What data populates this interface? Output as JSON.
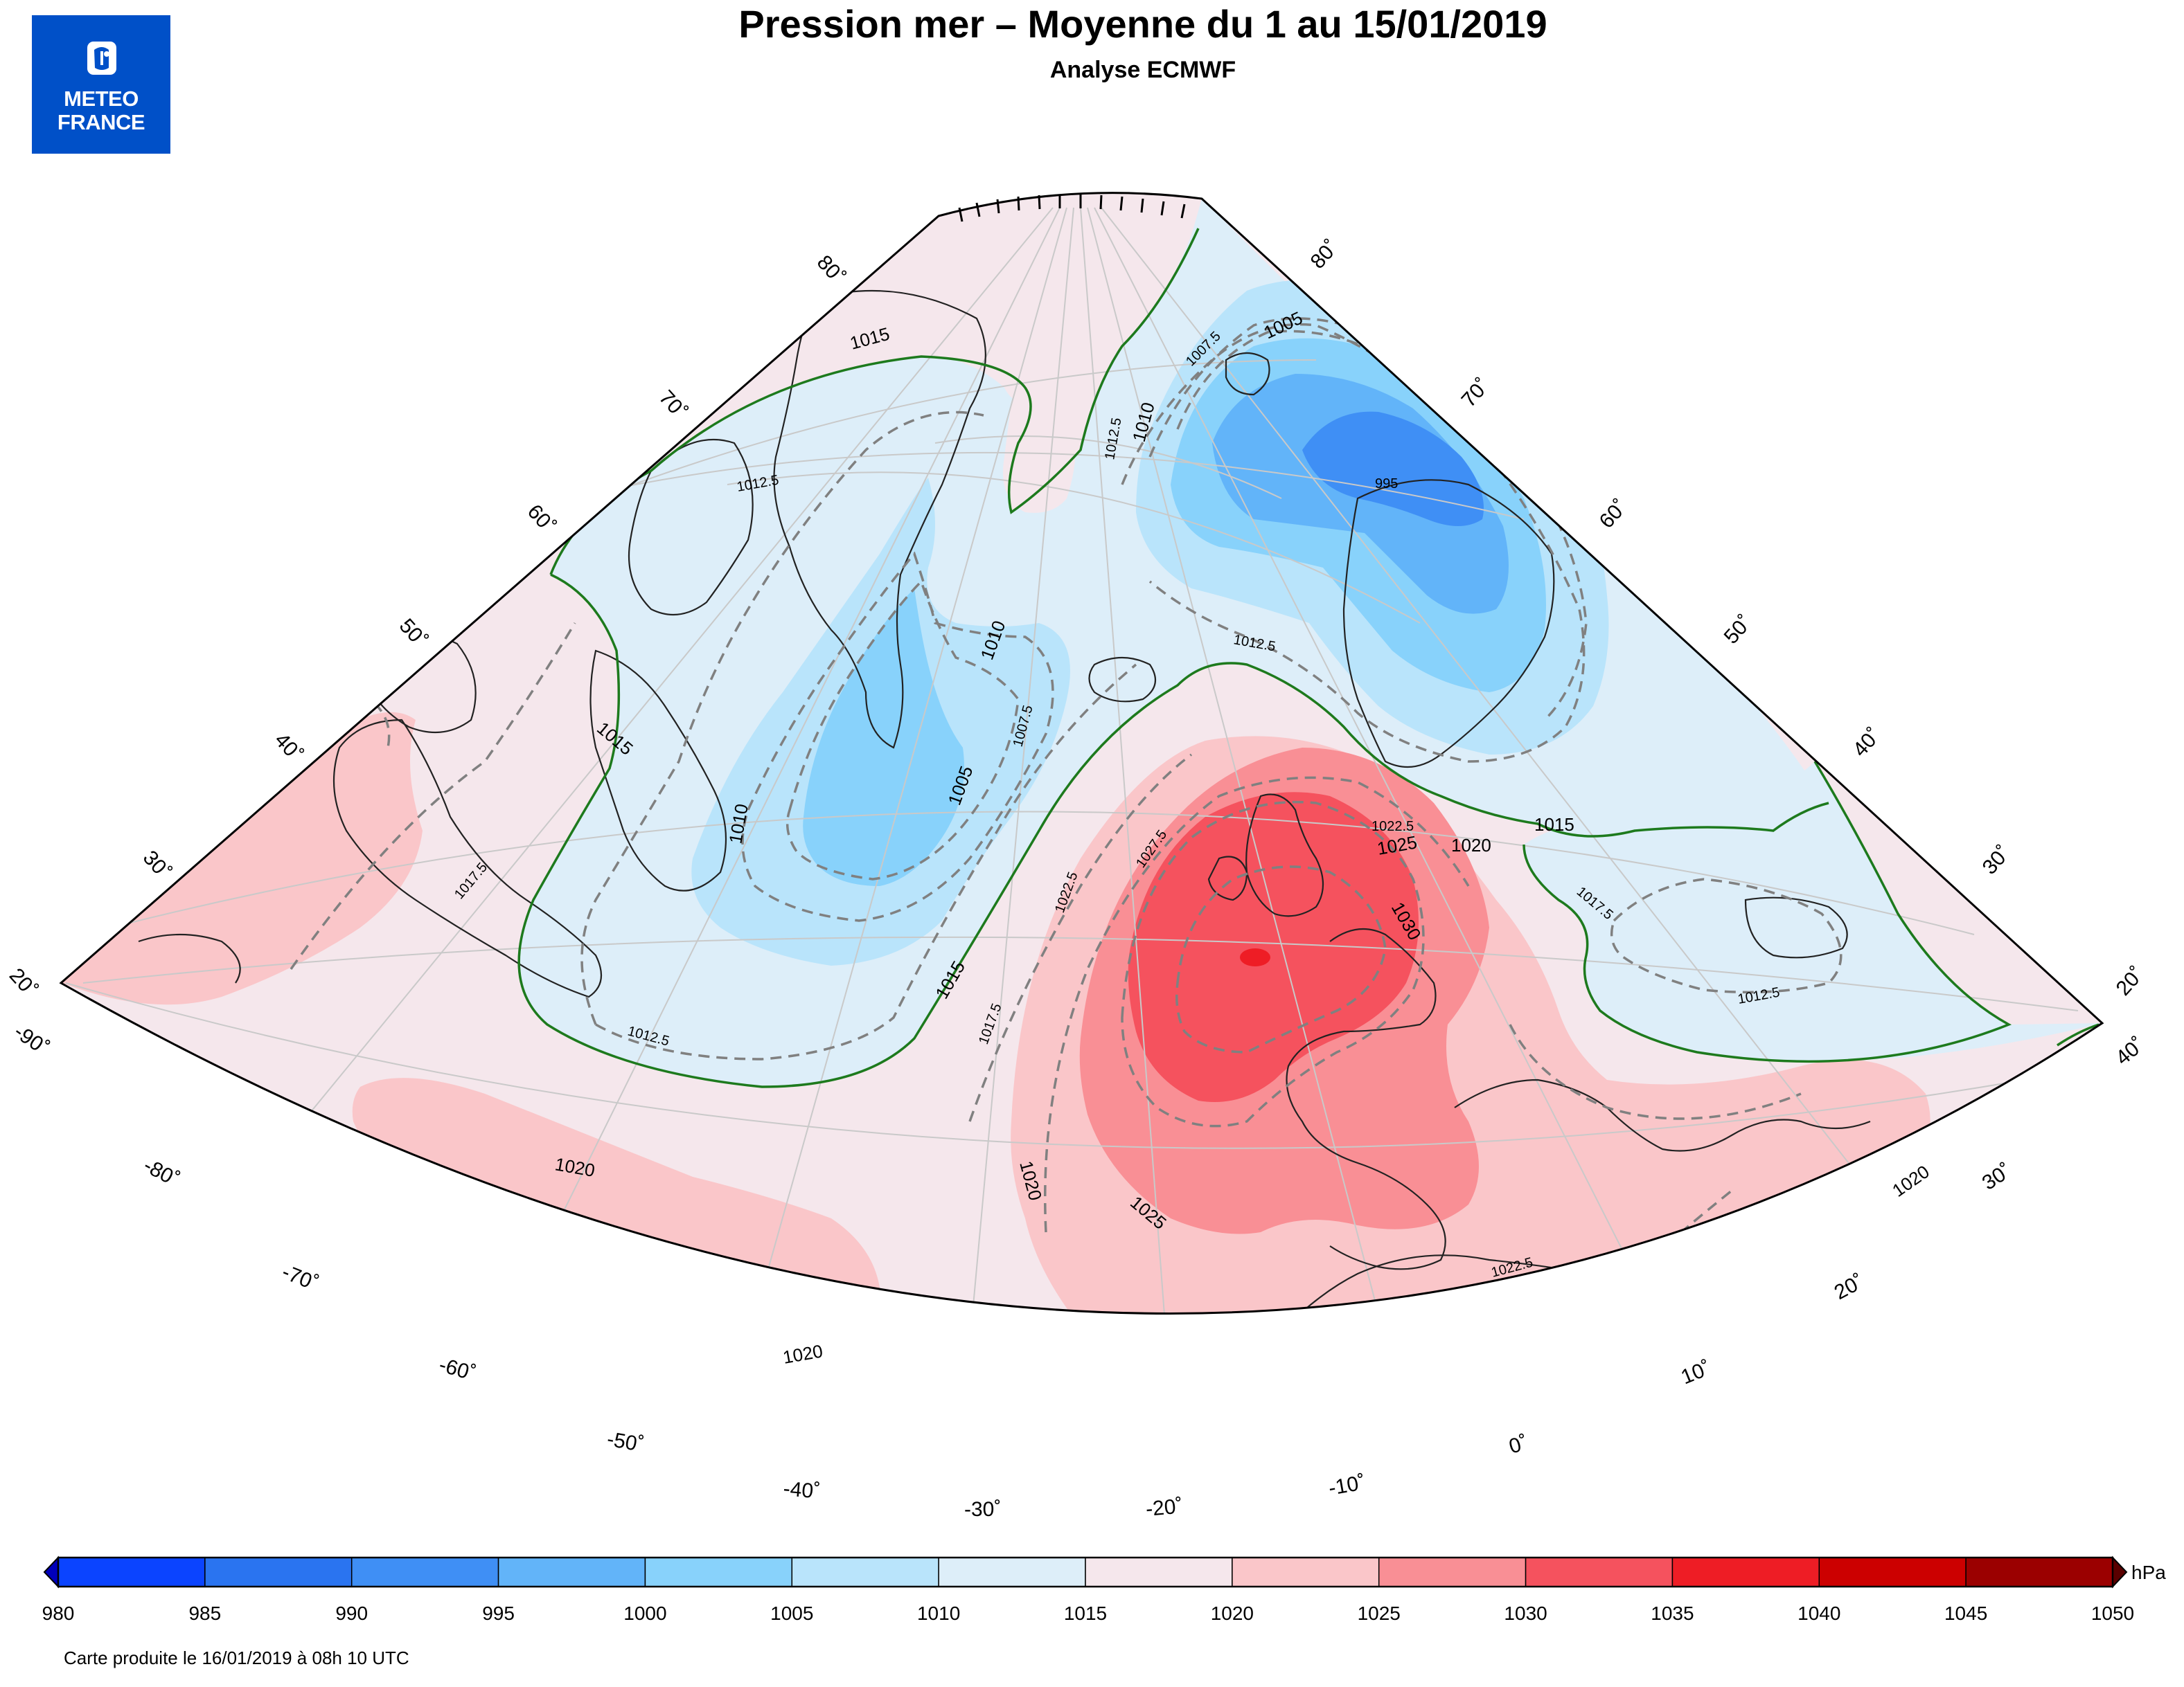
{
  "header": {
    "title": "Pression mer – Moyenne du 1 au 15/01/2019",
    "subtitle": "Analyse ECMWF"
  },
  "logo": {
    "line1": "METEO",
    "line2": "FRANCE"
  },
  "footer": {
    "text": "Carte produite le 16/01/2019 à 08h 10 UTC"
  },
  "latitude_labels_left": [
    "80˚",
    "70˚",
    "60˚",
    "50˚",
    "40˚",
    "30˚",
    "20˚"
  ],
  "latitude_labels_right": [
    "80˚",
    "70˚",
    "60˚",
    "50˚",
    "40˚",
    "30˚",
    "20˚"
  ],
  "longitude_labels": [
    "-90˚",
    "-80˚",
    "-70˚",
    "-60˚",
    "-50˚",
    "-40˚",
    "-30˚",
    "-20˚",
    "-10˚",
    "0˚",
    "10˚",
    "20˚",
    "30˚",
    "40˚"
  ],
  "isobar_labels": {
    "l1005_a": "1005",
    "l1005_b": "1005",
    "l1007_5_a": "1007.5",
    "l1007_5_b": "1007.5",
    "l1010_a": "1010",
    "l1010_b": "1010",
    "l1010_c": "1010",
    "l1012_5_a": "1012.5",
    "l1012_5_b": "1012.5",
    "l1012_5_c": "1012.5",
    "l1012_5_d": "1012.5",
    "l1012_5_e": "1012.5",
    "l1015_a": "1015",
    "l1015_b": "1015",
    "l1015_c": "1015",
    "l1015_d": "1015",
    "l1017_5_a": "1017.5",
    "l1017_5_b": "1017.5",
    "l1017_5_c": "1017.5",
    "l1020_a": "1020",
    "l1020_b": "1020",
    "l1020_c": "1020",
    "l1020_d": "1020",
    "l1020_e": "1020",
    "l1022_5_a": "1022.5",
    "l1022_5_b": "1022.5",
    "l1022_5_c": "1022.5",
    "l1025_a": "1025",
    "l1025_b": "1025",
    "l1027_5": "1027.5",
    "l1030": "1030",
    "l995": "995"
  },
  "colorbar": {
    "unit": "hPa",
    "ticks": [
      "980",
      "985",
      "990",
      "995",
      "1000",
      "1005",
      "1010",
      "1015",
      "1020",
      "1025",
      "1030",
      "1035",
      "1040",
      "1045",
      "1050"
    ],
    "colors": [
      "#0b44ff",
      "#2a74f0",
      "#3f8ff5",
      "#62b4f9",
      "#88d2fb",
      "#b9e4fb",
      "#ddeef9",
      "#f5e7ec",
      "#fac6c9",
      "#f98f95",
      "#f5525e",
      "#ee1d25",
      "#cc0000",
      "#9b0000"
    ],
    "end_low": "#0000bb",
    "end_high": "#5a0000"
  },
  "palette": {
    "lt995": "#3f8ff5",
    "p995_1000": "#62b4f9",
    "p1000_1005": "#88d2fb",
    "p1005_1010": "#b9e4fb",
    "p1010_1015": "#ddeef9",
    "p1015_1020": "#f5e7ec",
    "p1020_1025": "#fac6c9",
    "p1025_1030": "#f98f95",
    "p1030_1035": "#f5525e",
    "p1035_1040": "#ee1d25"
  }
}
